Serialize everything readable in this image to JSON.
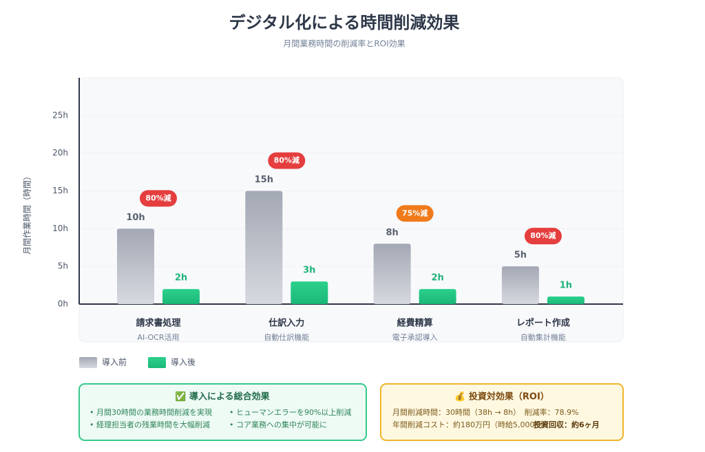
{
  "title": "デジタル化による時間削減効果",
  "subtitle": "月間業務時間の削減率とROI効果",
  "chart_data": {
    "type": "bar",
    "y_label": "月間作業時間（時間）",
    "categories": [
      "請求書処理",
      "仕訳入力",
      "経費精算",
      "レポート作成"
    ],
    "category_notes": [
      "AI-OCR活用",
      "自動仕訳機能",
      "電子承認導入",
      "自動集計機能"
    ],
    "series": [
      {
        "name": "導入前",
        "color": "#a3a8b4",
        "values": [
          10,
          15,
          8,
          5
        ],
        "value_labels": [
          "10h",
          "15h",
          "8h",
          "5h"
        ]
      },
      {
        "name": "導入後",
        "color": "#22c482",
        "values": [
          2,
          3,
          2,
          1
        ],
        "value_labels": [
          "2h",
          "3h",
          "2h",
          "1h"
        ]
      }
    ],
    "reduction": {
      "values": [
        80,
        80,
        75,
        80
      ],
      "value_labels": [
        "80%減",
        "80%減",
        "75%減",
        "80%減"
      ],
      "colors": [
        "#e53e3e",
        "#e53e3e",
        "#f07a1a",
        "#e53e3e"
      ]
    },
    "ylim": [
      0,
      30
    ],
    "yticks": [
      {
        "value": 0,
        "label": "0h"
      },
      {
        "value": 5,
        "label": "5h"
      },
      {
        "value": 10,
        "label": "10h"
      },
      {
        "value": 15,
        "label": "15h"
      },
      {
        "value": 20,
        "label": "20h"
      },
      {
        "value": 25,
        "label": "25h"
      }
    ],
    "grid": true
  },
  "summary": {
    "title": "✅ 導入による総合効果",
    "items": [
      "• 月間30時間の業務時間削減を実現",
      "• ヒューマンエラーを90%以上削減",
      "• 経理担当者の残業時間を大幅削減",
      "• コア業務への集中が可能に"
    ]
  },
  "roi": {
    "title": "💰 投資対効果（ROI）",
    "lines": [
      "月間削減時間：30時間（38h → 8h）　削減率：78.9%",
      "年間削減コスト：約180万円（時給5,000円）",
      "投資回収：約6ヶ月"
    ]
  }
}
